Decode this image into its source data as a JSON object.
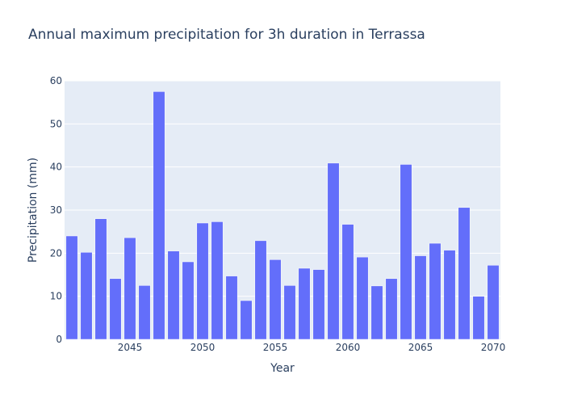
{
  "chart_data": {
    "type": "bar",
    "title": "Annual maximum precipitation for 3h duration in Terrassa",
    "xlabel": "Year",
    "ylabel": "Precipitation (mm)",
    "x": [
      2041,
      2042,
      2043,
      2044,
      2045,
      2046,
      2047,
      2048,
      2049,
      2050,
      2051,
      2052,
      2053,
      2054,
      2055,
      2056,
      2057,
      2058,
      2059,
      2060,
      2061,
      2062,
      2063,
      2064,
      2065,
      2066,
      2067,
      2068,
      2069,
      2070
    ],
    "values": [
      24.0,
      20.2,
      28.0,
      14.1,
      23.6,
      12.5,
      57.5,
      20.5,
      18.0,
      27.0,
      27.3,
      14.7,
      9.0,
      22.9,
      18.5,
      12.5,
      16.5,
      16.2,
      40.9,
      26.7,
      19.1,
      12.4,
      14.1,
      40.6,
      19.4,
      22.3,
      20.7,
      30.6,
      10.0,
      17.2
    ],
    "xlim": [
      2040.5,
      2070.5
    ],
    "ylim": [
      0,
      60
    ],
    "x_ticks": [
      2045,
      2050,
      2055,
      2060,
      2065,
      2070
    ],
    "y_ticks": [
      0,
      10,
      20,
      30,
      40,
      50,
      60
    ],
    "grid": true,
    "colors": {
      "bar": "#636efa",
      "plot_bg": "#e5ecf6",
      "grid": "#ffffff",
      "text": "#2a3f5f"
    }
  }
}
